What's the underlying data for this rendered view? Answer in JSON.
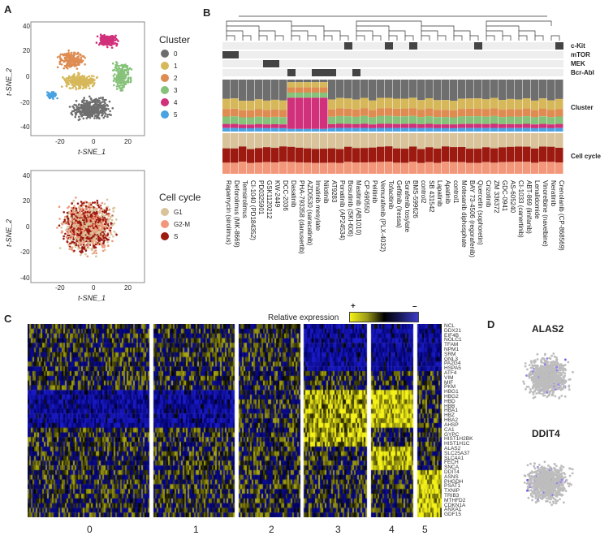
{
  "panels": {
    "A": "A",
    "B": "B",
    "C": "C",
    "D": "D"
  },
  "panelA": {
    "top": {
      "xlabel": "t-SNE_1",
      "ylabel": "t-SNE_2",
      "xticks": [
        "-20",
        "0",
        "20"
      ],
      "yticks": [
        "40",
        "20",
        "0",
        "-20",
        "-40"
      ],
      "legend_title": "Cluster",
      "legend": [
        {
          "label": "0",
          "color": "#6e6e6e"
        },
        {
          "label": "1",
          "color": "#d6b85a"
        },
        {
          "label": "2",
          "color": "#de8c52"
        },
        {
          "label": "3",
          "color": "#87c27a"
        },
        {
          "label": "4",
          "color": "#d1307a"
        },
        {
          "label": "5",
          "color": "#4aa3e0"
        }
      ]
    },
    "bottom": {
      "xlabel": "t-SNE_1",
      "ylabel": "t-SNE_2",
      "xticks": [
        "-20",
        "0",
        "20"
      ],
      "yticks": [
        "40",
        "20",
        "0",
        "-20",
        "-40"
      ],
      "legend_title": "Cell cycle",
      "legend": [
        {
          "label": "G1",
          "color": "#d8c39a"
        },
        {
          "label": "G2-M",
          "color": "#f2977a"
        },
        {
          "label": "S",
          "color": "#9c1a10"
        }
      ]
    }
  },
  "panelB": {
    "tracks": [
      "c-Kit",
      "mTOR",
      "MEK",
      "Bcr-Abl"
    ],
    "cluster_label": "Cluster",
    "cellcycle_label": "Cell cycle",
    "drugs": [
      "Rapamycin (sirolimus)",
      "Deforolimus (MK-8669)",
      "Temsirolimus",
      "CI-1040 (PD184352)",
      "PD0325901",
      "GSK1120212",
      "KW-2449",
      "DCC-2036",
      "Dasatinib",
      "PHA-793358 (danusertib)",
      "AZD0530 (saracatinib)",
      "Imatinib mesylate",
      "Nilotinib",
      "AT9283",
      "Ponatinib (AP24534)",
      "Bosutinib (SKI-606)",
      "Masitinib (AB1010)",
      "CP-690550",
      "Pelitinib",
      "Vemurafenib (PLX-4032)",
      "Tofacitinib",
      "Gefitinib (Iressa)",
      "Sorafenib tosylate",
      "BMS-599626",
      "control2",
      "SB 431542",
      "Lapatinib",
      "Apatinib",
      "control1",
      "Motesanib diphosphate",
      "BAY 73-4506 (regorafenib)",
      "Quercetin (sophoretin)",
      "Crizotinib",
      "ZM 336372",
      "GDC-0941",
      "AS-605240",
      "CI-1033 (canertinib)",
      "ABT-869 (linifanib)",
      "Lenalidomide",
      "Vinorelbine (navelbine)",
      "Neratinib",
      "Crenolanib (CP-868569)"
    ]
  },
  "panelC": {
    "colorbar_title": "Relative expression",
    "plus": "+",
    "minus": "–",
    "clusters": [
      "0",
      "1",
      "2",
      "3",
      "4",
      "5"
    ],
    "genes": [
      "NCL",
      "DDX21",
      "EIF4B",
      "NOLC1",
      "TFAM",
      "NPM1",
      "SRM",
      "GNL3",
      "PA2G4",
      "HSPA5",
      "ATF4",
      "VIM",
      "MIF",
      "PKM",
      "HBG1",
      "HBG2",
      "HBD",
      "HBB",
      "HBA1",
      "HBZ",
      "HBA2",
      "AHSP",
      "CA1",
      "GYPC",
      "HIST1H2BK",
      "HIST1H1C",
      "ALAS2",
      "SLC25A37",
      "SLC4A1",
      "FECH",
      "SNCA",
      "DDIT4",
      "ASNS",
      "PHGDH",
      "PSAT1",
      "TXNIP",
      "TRIB3",
      "MTHFD2",
      "CDKN1A",
      "ANXA1",
      "GDF15"
    ]
  },
  "panelD": {
    "gene1": "ALAS2",
    "gene2": "DDIT4"
  }
}
